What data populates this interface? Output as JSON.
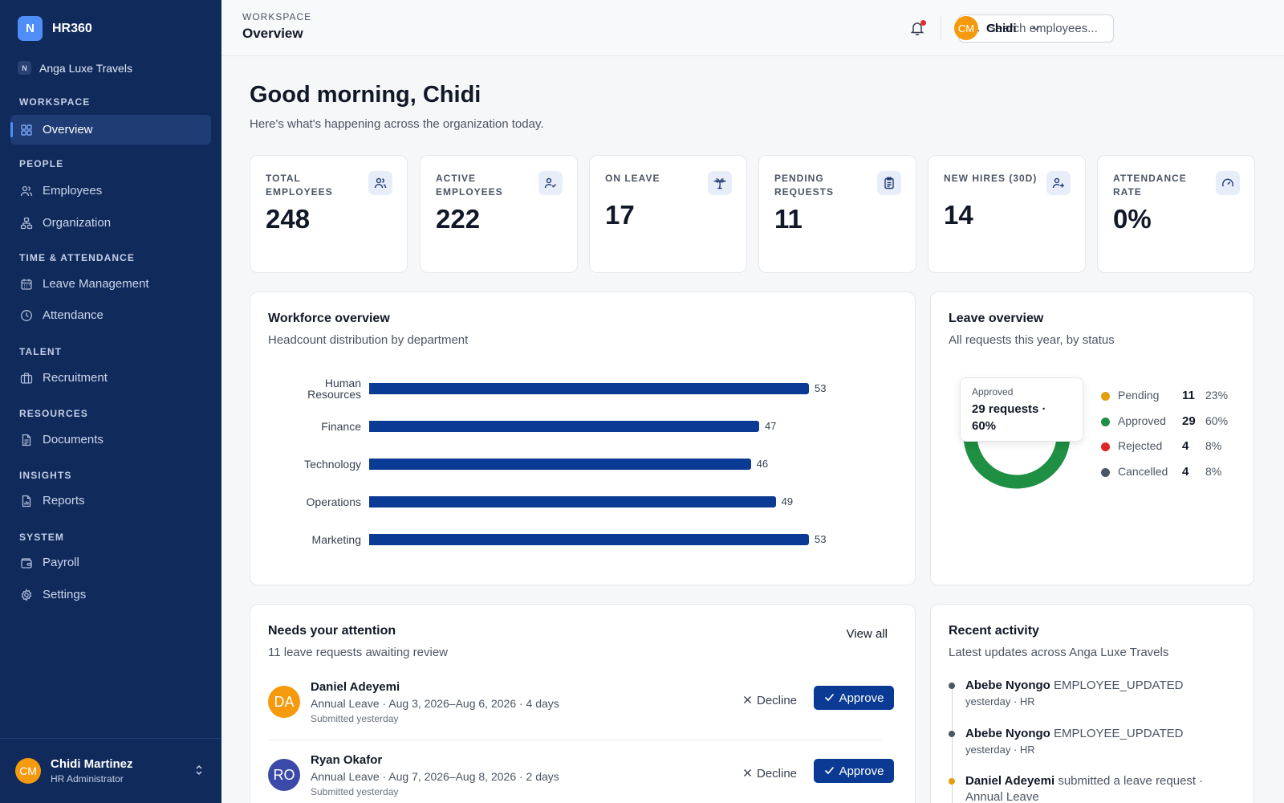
{
  "app": {
    "logo_letter": "N",
    "name": "HR360",
    "org_badge": "N",
    "org_name": "Anga Luxe Travels"
  },
  "sidebar": {
    "sections": [
      {
        "label": "WORKSPACE"
      },
      {
        "label": "PEOPLE"
      },
      {
        "label": "TIME & ATTENDANCE"
      },
      {
        "label": "TALENT"
      },
      {
        "label": "RESOURCES"
      },
      {
        "label": "INSIGHTS"
      },
      {
        "label": "SYSTEM"
      }
    ],
    "items": [
      {
        "label": "Overview",
        "icon": "grid-icon",
        "active": true
      },
      {
        "label": "Employees",
        "icon": "users-icon"
      },
      {
        "label": "Organization",
        "icon": "hierarchy-icon"
      },
      {
        "label": "Leave Management",
        "icon": "calendar-icon"
      },
      {
        "label": "Attendance",
        "icon": "clock-icon"
      },
      {
        "label": "Recruitment",
        "icon": "briefcase-icon"
      },
      {
        "label": "Documents",
        "icon": "document-icon"
      },
      {
        "label": "Reports",
        "icon": "report-icon"
      },
      {
        "label": "Payroll",
        "icon": "wallet-icon"
      },
      {
        "label": "Settings",
        "icon": "gear-icon"
      }
    ],
    "user": {
      "initials": "CM",
      "name": "Chidi Martinez",
      "role": "HR Administrator"
    }
  },
  "topbar": {
    "section": "WORKSPACE",
    "title": "Overview",
    "search_placeholder": "Search employees...",
    "user_initials": "CM",
    "user_name": "Chidi"
  },
  "greeting": {
    "title": "Good morning, Chidi",
    "subtitle": "Here's what's happening across the organization today."
  },
  "stats": [
    {
      "label": "TOTAL EMPLOYEES",
      "value": "248",
      "icon": "users-icon"
    },
    {
      "label": "ACTIVE EMPLOYEES",
      "value": "222",
      "icon": "user-check-icon"
    },
    {
      "label": "ON LEAVE",
      "value": "17",
      "icon": "palm-tree-icon"
    },
    {
      "label": "PENDING REQUESTS",
      "value": "11",
      "icon": "clipboard-icon"
    },
    {
      "label": "NEW HIRES (30D)",
      "value": "14",
      "icon": "user-plus-icon"
    },
    {
      "label": "ATTENDANCE RATE",
      "value": "0%",
      "icon": "gauge-icon"
    }
  ],
  "workforce": {
    "title": "Workforce overview",
    "subtitle": "Headcount distribution by department",
    "chart_data": {
      "type": "bar",
      "orientation": "horizontal",
      "categories": [
        "Human Resources",
        "Finance",
        "Technology",
        "Operations",
        "Marketing"
      ],
      "values": [
        53,
        47,
        46,
        49,
        53
      ],
      "grid": false
    }
  },
  "leave": {
    "title": "Leave overview",
    "subtitle": "All requests this year, by status",
    "tooltip": {
      "title": "Approved",
      "value": "29 requests · 60%"
    },
    "chart_data": {
      "type": "pie",
      "donut": true,
      "categories": [
        "Pending",
        "Approved",
        "Rejected",
        "Cancelled"
      ],
      "values": [
        11,
        29,
        4,
        4
      ],
      "percents": [
        "23%",
        "60%",
        "8%",
        "8%"
      ],
      "colors": [
        "#e59e0c",
        "#1f8f43",
        "#dc2626",
        "#4b5563"
      ],
      "legend": "right"
    }
  },
  "attention": {
    "title": "Needs your attention",
    "subtitle": "11 leave requests awaiting review",
    "view_all": "View all",
    "decline_label": "Decline",
    "approve_label": "Approve",
    "requests": [
      {
        "initials": "DA",
        "avatar_color": "#f59a0c",
        "name": "Daniel Adeyemi",
        "detail": "Annual Leave · Aug 3, 2026–Aug 6, 2026 · 4 days",
        "submitted": "Submitted yesterday"
      },
      {
        "initials": "RO",
        "avatar_color": "#3b4aa8",
        "name": "Ryan Okafor",
        "detail": "Annual Leave · Aug 7, 2026–Aug 8, 2026 · 2 days",
        "submitted": "Submitted yesterday"
      }
    ]
  },
  "activity": {
    "title": "Recent activity",
    "subtitle": "Latest updates across Anga Luxe Travels",
    "items": [
      {
        "actor": "Abebe Nyongo",
        "action": "EMPLOYEE_UPDATED",
        "meta": "yesterday · HR",
        "dot_color": "#4b5563"
      },
      {
        "actor": "Abebe Nyongo",
        "action": "EMPLOYEE_UPDATED",
        "meta": "yesterday · HR",
        "dot_color": "#4b5563"
      },
      {
        "actor": "Daniel Adeyemi",
        "action": "submitted a leave request · Annual Leave",
        "meta": "",
        "dot_color": "#e59e0c"
      }
    ]
  }
}
